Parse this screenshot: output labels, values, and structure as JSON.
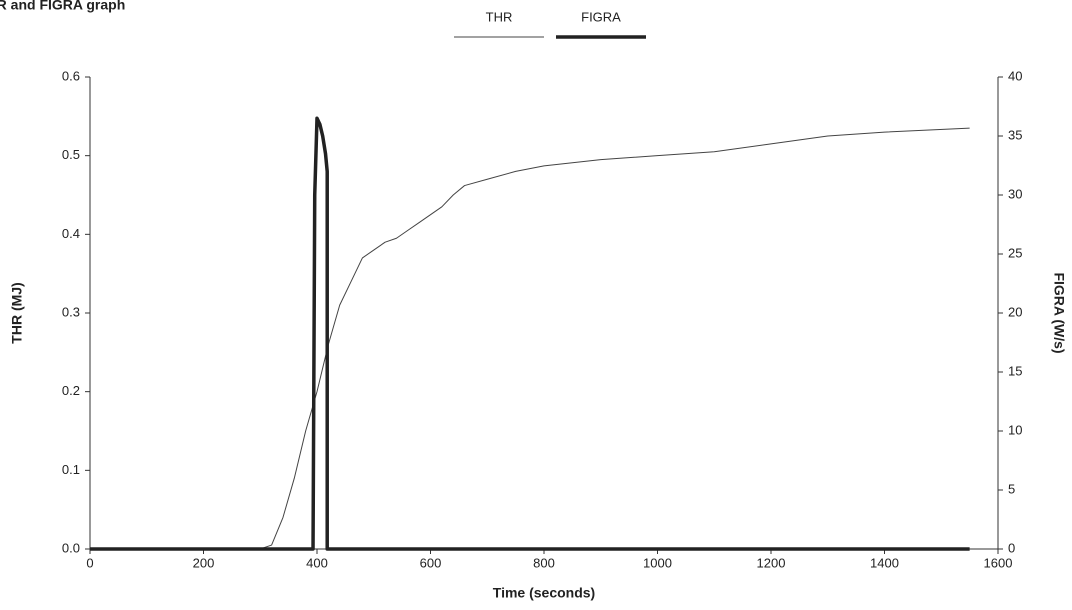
{
  "chart_data": {
    "type": "line",
    "title": "THR and FIGRA graph",
    "x_label": "Time (seconds)",
    "y_label": "THR (MJ)",
    "y2_label": "FIGRA (W/s)",
    "xlim": [
      0,
      1600
    ],
    "xticks": [
      0,
      200,
      400,
      600,
      800,
      1000,
      1200,
      1400,
      1600
    ],
    "ylim": [
      0,
      0.6
    ],
    "yticks": [
      {
        "value": 0,
        "label": "0.0"
      },
      0.1,
      0.2,
      0.3,
      0.4,
      0.5,
      0.6
    ],
    "y2lim": [
      0,
      40
    ],
    "y2ticks": [
      0,
      5,
      10,
      15,
      20,
      25,
      30,
      35,
      40
    ],
    "grid": false,
    "legend": "top",
    "series": [
      {
        "name": "THR",
        "color": "#444444",
        "linewidth": 1,
        "x": [
          300,
          320,
          340,
          360,
          380,
          400,
          420,
          440,
          460,
          480,
          500,
          520,
          540,
          560,
          580,
          600,
          620,
          640,
          660,
          700,
          750,
          800,
          900,
          1000,
          1100,
          1200,
          1300,
          1400,
          1550
        ],
        "values": [
          0,
          0.005,
          0.04,
          0.09,
          0.15,
          0.2,
          0.26,
          0.31,
          0.34,
          0.37,
          0.38,
          0.39,
          0.395,
          0.405,
          0.415,
          0.425,
          0.435,
          0.45,
          0.462,
          0.47,
          0.48,
          0.487,
          0.495,
          0.5,
          0.505,
          0.515,
          0.525,
          0.53,
          0.535
        ]
      },
      {
        "name": "FIGRA",
        "color": "#222222",
        "linewidth": 3.5,
        "axis": "y2",
        "x": [
          0,
          393,
          396,
          400,
          405,
          410,
          415,
          418,
          418,
          1550
        ],
        "values": [
          0,
          0,
          30,
          36.5,
          36,
          35,
          33.5,
          32,
          0,
          0
        ]
      }
    ]
  }
}
